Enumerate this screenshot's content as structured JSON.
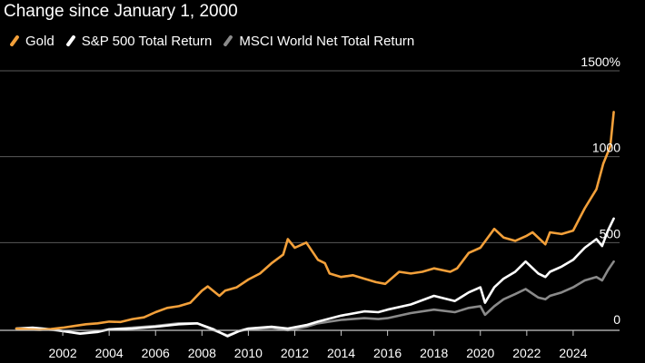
{
  "title": "Change since January 1, 2000",
  "legend": [
    {
      "label": "Gold",
      "color": "#f3a03a"
    },
    {
      "label": "S&P 500 Total Return",
      "color": "#ffffff"
    },
    {
      "label": "MSCI World Net Total Return",
      "color": "#8a8a8a"
    }
  ],
  "chart_data": {
    "type": "line",
    "title": "Change since January 1, 2000",
    "xlabel": "",
    "ylabel": "",
    "xlim": [
      2000,
      2026
    ],
    "ylim": [
      -40,
      1500
    ],
    "grid": true,
    "y_ticks": [
      {
        "value": 1500,
        "label": "1500%"
      },
      {
        "value": 1000,
        "label": "1000"
      },
      {
        "value": 500,
        "label": "500"
      },
      {
        "value": 0,
        "label": "0"
      }
    ],
    "x_ticks": [
      {
        "value": 2002,
        "label": "2002"
      },
      {
        "value": 2004,
        "label": "2004"
      },
      {
        "value": 2006,
        "label": "2006"
      },
      {
        "value": 2008,
        "label": "2008"
      },
      {
        "value": 2010,
        "label": "2010"
      },
      {
        "value": 2012,
        "label": "2012"
      },
      {
        "value": 2014,
        "label": "2014"
      },
      {
        "value": 2016,
        "label": "2016"
      },
      {
        "value": 2018,
        "label": "2018"
      },
      {
        "value": 2020,
        "label": "2020"
      },
      {
        "value": 2022,
        "label": "2022"
      },
      {
        "value": 2024,
        "label": "2024"
      }
    ],
    "series": [
      {
        "name": "Gold",
        "color": "#f3a03a",
        "x": [
          2000.0,
          2000.5,
          2001.0,
          2001.5,
          2002.0,
          2002.5,
          2003.0,
          2003.5,
          2004.0,
          2004.5,
          2005.0,
          2005.5,
          2006.0,
          2006.5,
          2007.0,
          2007.5,
          2008.0,
          2008.25,
          2008.75,
          2009.0,
          2009.5,
          2010.0,
          2010.5,
          2011.0,
          2011.5,
          2011.7,
          2012.0,
          2012.5,
          2013.0,
          2013.3,
          2013.5,
          2014.0,
          2014.5,
          2015.0,
          2015.5,
          2015.9,
          2016.5,
          2017.0,
          2017.5,
          2018.0,
          2018.7,
          2019.0,
          2019.5,
          2020.0,
          2020.6,
          2021.0,
          2021.5,
          2022.0,
          2022.25,
          2022.8,
          2023.0,
          2023.5,
          2024.0,
          2024.5,
          2025.0,
          2025.3,
          2025.6,
          2025.75
        ],
        "values": [
          0,
          -5,
          -8,
          -3,
          5,
          15,
          25,
          30,
          40,
          38,
          55,
          65,
          95,
          120,
          130,
          150,
          220,
          245,
          190,
          220,
          240,
          285,
          320,
          380,
          430,
          520,
          470,
          500,
          400,
          380,
          320,
          300,
          310,
          290,
          270,
          260,
          330,
          320,
          330,
          350,
          330,
          350,
          440,
          470,
          580,
          530,
          510,
          540,
          560,
          490,
          560,
          550,
          570,
          700,
          810,
          960,
          1060,
          1260
        ]
      },
      {
        "name": "S&P 500 Total Return",
        "color": "#ffffff",
        "x": [
          2000.0,
          2000.7,
          2001.5,
          2002.0,
          2002.75,
          2003.5,
          2004.0,
          2005.0,
          2006.0,
          2007.0,
          2007.8,
          2008.5,
          2009.1,
          2009.6,
          2010.0,
          2011.0,
          2011.7,
          2012.5,
          2013.0,
          2014.0,
          2015.0,
          2015.6,
          2016.0,
          2017.0,
          2018.0,
          2018.9,
          2019.5,
          2020.0,
          2020.2,
          2020.6,
          2021.0,
          2021.5,
          2021.95,
          2022.5,
          2022.8,
          2023.0,
          2023.5,
          2024.0,
          2024.5,
          2025.0,
          2025.25,
          2025.5,
          2025.75
        ],
        "values": [
          0,
          5,
          -5,
          -15,
          -30,
          -20,
          -5,
          0,
          10,
          25,
          30,
          -5,
          -45,
          -15,
          0,
          10,
          0,
          20,
          40,
          75,
          100,
          95,
          110,
          140,
          190,
          160,
          210,
          240,
          150,
          240,
          290,
          330,
          390,
          320,
          300,
          330,
          360,
          400,
          470,
          520,
          480,
          570,
          640
        ]
      },
      {
        "name": "MSCI World Net Total Return",
        "color": "#8a8a8a",
        "x": [
          2000.0,
          2000.7,
          2001.5,
          2002.0,
          2002.75,
          2003.5,
          2004.0,
          2005.0,
          2006.0,
          2007.0,
          2007.8,
          2008.5,
          2009.1,
          2009.6,
          2010.0,
          2011.0,
          2011.7,
          2012.5,
          2013.0,
          2014.0,
          2015.0,
          2015.6,
          2016.0,
          2017.0,
          2018.0,
          2018.9,
          2019.5,
          2020.0,
          2020.2,
          2020.6,
          2021.0,
          2021.5,
          2021.95,
          2022.5,
          2022.8,
          2023.0,
          2023.5,
          2024.0,
          2024.5,
          2025.0,
          2025.25,
          2025.5,
          2025.75
        ],
        "values": [
          0,
          2,
          -8,
          -15,
          -28,
          -18,
          -5,
          5,
          15,
          30,
          30,
          -10,
          -40,
          -15,
          -5,
          5,
          -10,
          10,
          30,
          50,
          60,
          55,
          60,
          90,
          110,
          95,
          120,
          130,
          80,
          130,
          170,
          200,
          230,
          180,
          170,
          190,
          210,
          240,
          280,
          300,
          280,
          340,
          390
        ]
      }
    ]
  }
}
